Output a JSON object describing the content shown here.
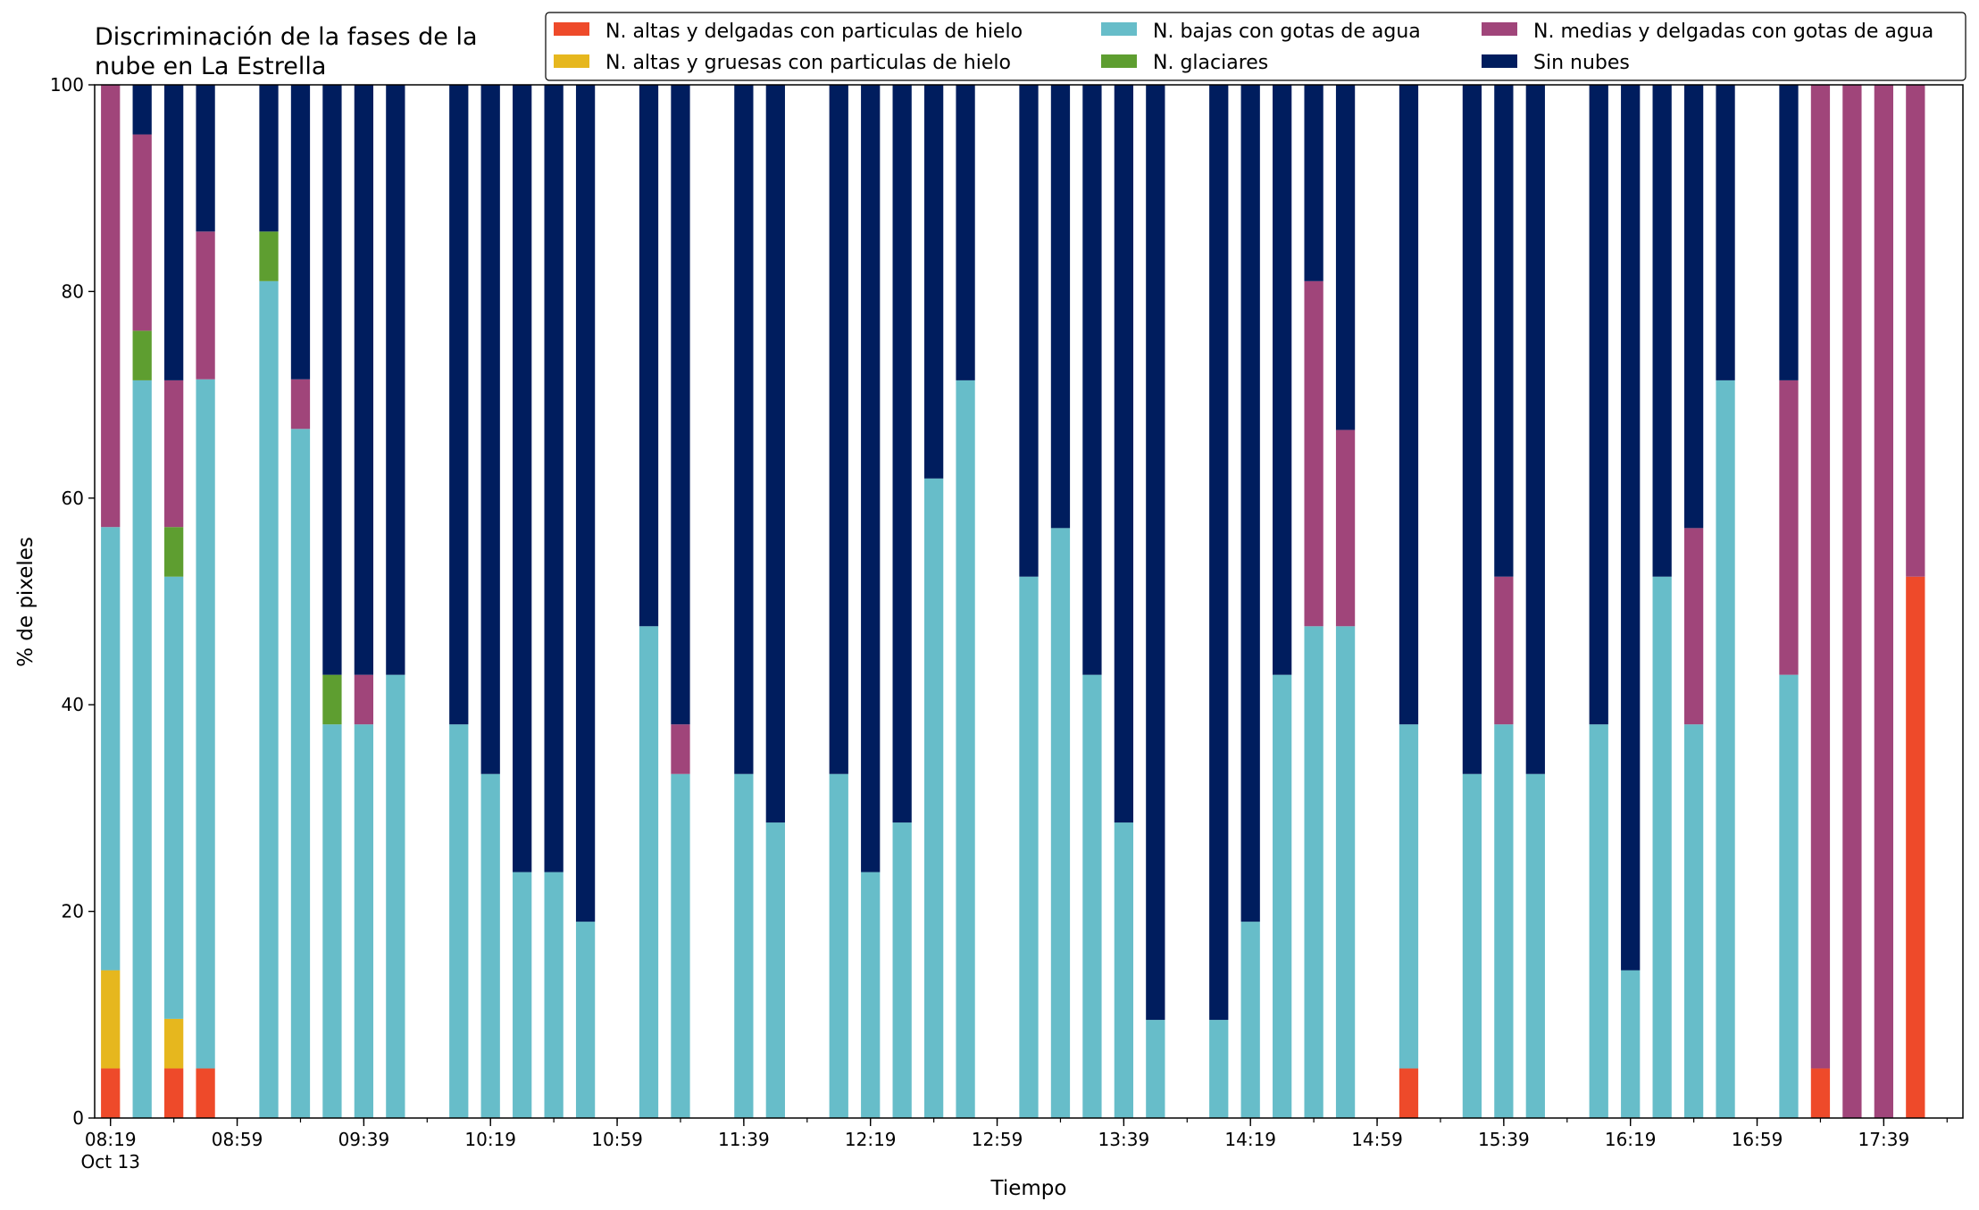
{
  "chart_data": {
    "type": "bar",
    "stacked": true,
    "title_lines": [
      "Discriminación de la fases de la",
      "nube en La Estrella"
    ],
    "xlabel": "Tiempo",
    "ylabel": "% de pixeles",
    "ylim": [
      0,
      100
    ],
    "yticks": [
      0,
      20,
      40,
      60,
      80,
      100
    ],
    "xlim": [
      "08:14",
      "18:04"
    ],
    "x_tick_labels": [
      "08:19",
      "08:59",
      "09:39",
      "10:19",
      "10:59",
      "11:39",
      "12:19",
      "12:59",
      "13:39",
      "14:19",
      "14:59",
      "15:39",
      "16:19",
      "16:59",
      "17:39"
    ],
    "x_tick_sublabel": "Oct 13",
    "x_minor_tick_interval_minutes": 20,
    "bar_width_minutes": 6,
    "grid": false,
    "legend_position": "top-right",
    "categories": [
      "08:19",
      "08:29",
      "08:39",
      "08:49",
      "08:59",
      "09:09",
      "09:19",
      "09:29",
      "09:39",
      "09:49",
      "09:59",
      "10:09",
      "10:19",
      "10:29",
      "10:39",
      "10:49",
      "10:59",
      "11:09",
      "11:19",
      "11:29",
      "11:39",
      "11:49",
      "11:59",
      "12:09",
      "12:19",
      "12:29",
      "12:39",
      "12:49",
      "12:59",
      "13:09",
      "13:19",
      "13:29",
      "13:39",
      "13:49",
      "13:59",
      "14:09",
      "14:19",
      "14:29",
      "14:39",
      "14:49",
      "14:59",
      "15:09",
      "15:19",
      "15:29",
      "15:39",
      "15:49",
      "15:59",
      "16:09",
      "16:19",
      "16:29",
      "16:39",
      "16:49",
      "16:59",
      "17:09",
      "17:19",
      "17:29",
      "17:39",
      "17:49",
      "17:59"
    ],
    "series": [
      {
        "name": "N. altas y delgadas con particulas de hielo",
        "color": "#ee4a2a",
        "values": [
          4.8,
          0,
          4.8,
          4.8,
          null,
          0,
          0,
          0,
          0,
          0,
          null,
          0,
          0,
          0,
          0,
          0,
          null,
          0,
          0,
          null,
          0,
          0,
          null,
          0,
          0,
          0,
          0,
          0,
          null,
          0,
          0,
          0,
          0,
          0,
          null,
          0,
          0,
          0,
          0,
          0,
          null,
          4.8,
          null,
          0,
          0,
          0,
          null,
          0,
          0,
          0,
          0,
          0,
          null,
          0,
          4.8,
          0,
          0,
          52.4,
          null
        ]
      },
      {
        "name": "N. altas y gruesas con particulas de hielo",
        "color": "#e6b71e",
        "values": [
          9.5,
          0,
          4.8,
          0,
          null,
          0,
          0,
          0,
          0,
          0,
          null,
          0,
          0,
          0,
          0,
          0,
          null,
          0,
          0,
          null,
          0,
          0,
          null,
          0,
          0,
          0,
          0,
          0,
          null,
          0,
          0,
          0,
          0,
          0,
          null,
          0,
          0,
          0,
          0,
          0,
          null,
          0,
          null,
          0,
          0,
          0,
          null,
          0,
          0,
          0,
          0,
          0,
          null,
          0,
          0,
          0,
          0,
          0,
          null
        ]
      },
      {
        "name": "N. bajas con gotas de agua",
        "color": "#67bdc9",
        "values": [
          42.9,
          71.4,
          42.8,
          66.7,
          null,
          81.0,
          66.7,
          38.1,
          38.1,
          42.9,
          null,
          38.1,
          33.3,
          23.8,
          23.8,
          19.0,
          null,
          47.6,
          33.3,
          null,
          33.3,
          28.6,
          null,
          33.3,
          23.8,
          28.6,
          61.9,
          71.4,
          null,
          52.4,
          57.1,
          42.9,
          28.6,
          9.5,
          null,
          9.5,
          19.0,
          42.9,
          47.6,
          47.6,
          null,
          33.3,
          null,
          33.3,
          38.1,
          33.3,
          null,
          38.1,
          14.3,
          52.4,
          38.1,
          71.4,
          null,
          42.9,
          0,
          0,
          0,
          0,
          null
        ]
      },
      {
        "name": "N. glaciares",
        "color": "#5e9e30",
        "values": [
          0,
          4.8,
          4.8,
          0,
          null,
          4.8,
          0,
          4.8,
          0,
          0,
          null,
          0,
          0,
          0,
          0,
          0,
          null,
          0,
          0,
          null,
          0,
          0,
          null,
          0,
          0,
          0,
          0,
          0,
          null,
          0,
          0,
          0,
          0,
          0,
          null,
          0,
          0,
          0,
          0,
          0,
          null,
          0,
          null,
          0,
          0,
          0,
          null,
          0,
          0,
          0,
          0,
          0,
          null,
          0,
          0,
          0,
          0,
          0,
          null
        ]
      },
      {
        "name": "N. medias y delgadas con gotas de agua",
        "color": "#a0457a",
        "values": [
          42.8,
          19.0,
          14.2,
          14.3,
          null,
          0,
          4.8,
          0,
          4.8,
          0,
          null,
          0,
          0,
          0,
          0,
          0,
          null,
          0,
          4.8,
          null,
          0,
          0,
          null,
          0,
          0,
          0,
          0,
          0,
          null,
          0,
          0,
          0,
          0,
          0,
          null,
          0,
          0,
          0,
          33.4,
          19.0,
          null,
          0,
          null,
          0,
          14.3,
          0,
          null,
          0,
          0,
          0,
          19.0,
          0,
          null,
          28.5,
          95.2,
          100,
          100,
          47.6,
          null
        ]
      },
      {
        "name": "Sin nubes",
        "color": "#001d5e",
        "values": [
          0,
          4.8,
          28.6,
          14.2,
          null,
          14.2,
          28.5,
          57.1,
          57.1,
          57.1,
          null,
          61.9,
          66.7,
          76.2,
          76.2,
          81.0,
          null,
          52.4,
          61.9,
          null,
          66.7,
          71.4,
          null,
          66.7,
          76.2,
          71.4,
          38.1,
          28.6,
          null,
          47.6,
          42.9,
          57.1,
          71.4,
          90.5,
          null,
          90.5,
          81.0,
          57.1,
          19.0,
          33.4,
          null,
          61.9,
          null,
          66.7,
          47.6,
          66.7,
          null,
          61.9,
          85.7,
          47.6,
          42.9,
          28.6,
          null,
          28.6,
          0,
          0,
          0,
          0,
          null
        ]
      }
    ]
  }
}
